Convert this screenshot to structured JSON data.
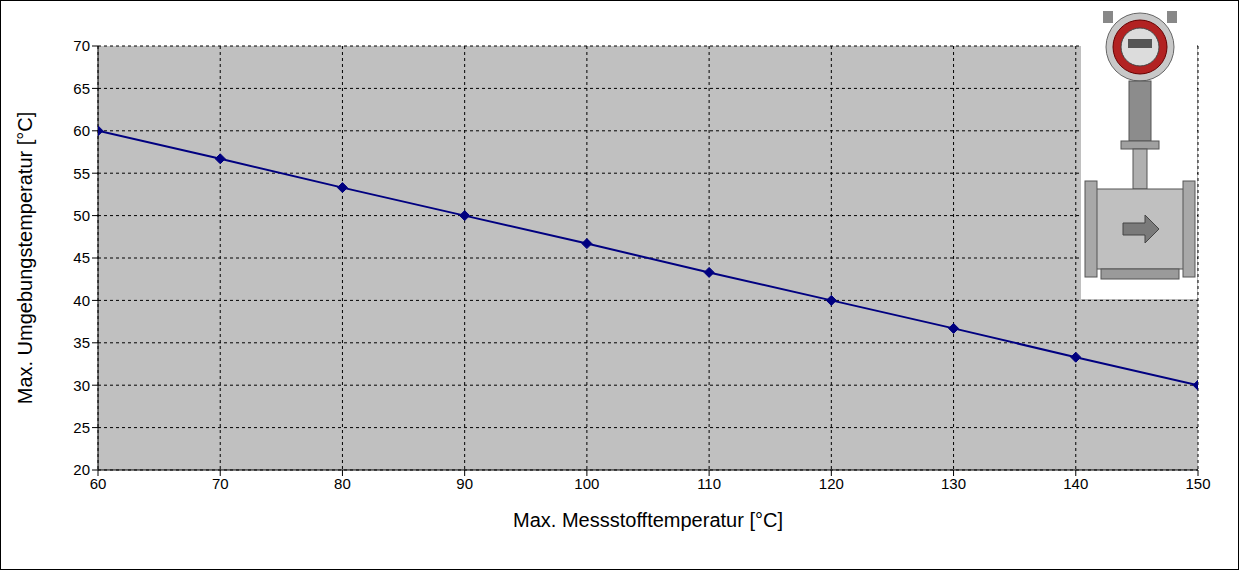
{
  "chart_data": {
    "type": "line",
    "x_label": "Max. Messstofftemperatur [°C]",
    "y_label": "Max. Umgebungstemperatur [°C]",
    "x": [
      60,
      70,
      80,
      90,
      100,
      110,
      120,
      130,
      140,
      150
    ],
    "values": [
      60,
      56.7,
      53.3,
      50,
      46.7,
      43.3,
      40,
      36.7,
      33.3,
      30
    ],
    "color": "#000080",
    "marker": "diamond",
    "xlim": [
      60,
      150
    ],
    "ylim": [
      20,
      70
    ],
    "xticks": [
      60,
      70,
      80,
      90,
      100,
      110,
      120,
      130,
      140,
      150
    ],
    "yticks": [
      20,
      25,
      30,
      35,
      40,
      45,
      50,
      55,
      60,
      65,
      70
    ],
    "grid": true
  }
}
